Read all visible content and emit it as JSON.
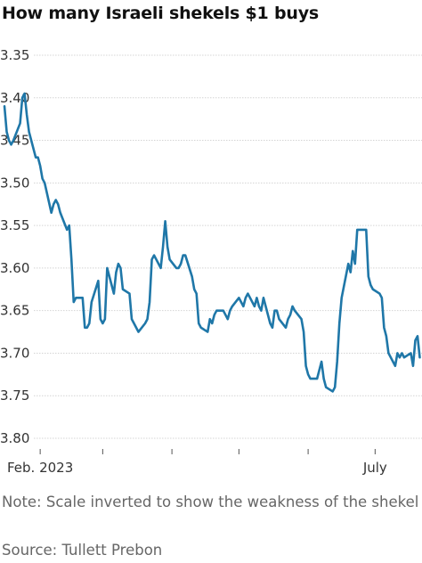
{
  "title": "How many Israeli shekels $1 buys",
  "note": "Note: Scale inverted to show the weakness of the shekel",
  "source": "Source: Tullett Prebon",
  "colors": {
    "line": "#1f77a8",
    "grid": "#d4d4d4",
    "tick": "#555555"
  },
  "chart_data": {
    "type": "line",
    "title": "How many Israeli shekels $1 buys",
    "xlabel": "",
    "ylabel": "",
    "y_inverted": true,
    "ylim": [
      3.35,
      3.8
    ],
    "yticks": [
      3.35,
      3.4,
      3.45,
      3.5,
      3.55,
      3.6,
      3.65,
      3.7,
      3.75,
      3.8
    ],
    "ytick_labels": [
      "3.35",
      "3.40",
      "3.45",
      "3.50",
      "3.55",
      "3.60",
      "3.65",
      "3.70",
      "3.75",
      "3.80"
    ],
    "xlim": [
      "2023-01-14",
      "2023-07-22"
    ],
    "xtick_dates": [
      "2023-02-01",
      "2023-03-01",
      "2023-04-01",
      "2023-05-01",
      "2023-06-01",
      "2023-07-01"
    ],
    "xtick_labels": [
      "Feb. 2023",
      "",
      "",
      "",
      "",
      "July"
    ],
    "grid": true,
    "series": [
      {
        "values": [
          [
            "2023-01-16",
            3.41
          ],
          [
            "2023-01-17",
            3.44
          ],
          [
            "2023-01-18",
            3.45
          ],
          [
            "2023-01-19",
            3.455
          ],
          [
            "2023-01-20",
            3.45
          ],
          [
            "2023-01-23",
            3.43
          ],
          [
            "2023-01-24",
            3.4
          ],
          [
            "2023-01-25",
            3.395
          ],
          [
            "2023-01-26",
            3.42
          ],
          [
            "2023-01-27",
            3.44
          ],
          [
            "2023-01-30",
            3.47
          ],
          [
            "2023-01-31",
            3.47
          ],
          [
            "2023-02-01",
            3.48
          ],
          [
            "2023-02-02",
            3.495
          ],
          [
            "2023-02-03",
            3.5
          ],
          [
            "2023-02-06",
            3.535
          ],
          [
            "2023-02-07",
            3.525
          ],
          [
            "2023-02-08",
            3.52
          ],
          [
            "2023-02-09",
            3.525
          ],
          [
            "2023-02-10",
            3.535
          ],
          [
            "2023-02-13",
            3.555
          ],
          [
            "2023-02-14",
            3.55
          ],
          [
            "2023-02-15",
            3.59
          ],
          [
            "2023-02-16",
            3.64
          ],
          [
            "2023-02-17",
            3.635
          ],
          [
            "2023-02-20",
            3.635
          ],
          [
            "2023-02-21",
            3.67
          ],
          [
            "2023-02-22",
            3.67
          ],
          [
            "2023-02-23",
            3.665
          ],
          [
            "2023-02-24",
            3.64
          ],
          [
            "2023-02-27",
            3.615
          ],
          [
            "2023-02-28",
            3.66
          ],
          [
            "2023-03-01",
            3.665
          ],
          [
            "2023-03-02",
            3.66
          ],
          [
            "2023-03-03",
            3.6
          ],
          [
            "2023-03-06",
            3.63
          ],
          [
            "2023-03-07",
            3.605
          ],
          [
            "2023-03-08",
            3.595
          ],
          [
            "2023-03-09",
            3.6
          ],
          [
            "2023-03-10",
            3.625
          ],
          [
            "2023-03-13",
            3.63
          ],
          [
            "2023-03-14",
            3.66
          ],
          [
            "2023-03-15",
            3.665
          ],
          [
            "2023-03-16",
            3.67
          ],
          [
            "2023-03-17",
            3.675
          ],
          [
            "2023-03-20",
            3.665
          ],
          [
            "2023-03-21",
            3.66
          ],
          [
            "2023-03-22",
            3.64
          ],
          [
            "2023-03-23",
            3.59
          ],
          [
            "2023-03-24",
            3.585
          ],
          [
            "2023-03-27",
            3.6
          ],
          [
            "2023-03-28",
            3.575
          ],
          [
            "2023-03-29",
            3.545
          ],
          [
            "2023-03-30",
            3.575
          ],
          [
            "2023-03-31",
            3.59
          ],
          [
            "2023-04-03",
            3.6
          ],
          [
            "2023-04-04",
            3.6
          ],
          [
            "2023-04-05",
            3.595
          ],
          [
            "2023-04-06",
            3.585
          ],
          [
            "2023-04-07",
            3.585
          ],
          [
            "2023-04-10",
            3.61
          ],
          [
            "2023-04-11",
            3.625
          ],
          [
            "2023-04-12",
            3.63
          ],
          [
            "2023-04-13",
            3.665
          ],
          [
            "2023-04-14",
            3.67
          ],
          [
            "2023-04-17",
            3.675
          ],
          [
            "2023-04-18",
            3.66
          ],
          [
            "2023-04-19",
            3.665
          ],
          [
            "2023-04-20",
            3.655
          ],
          [
            "2023-04-21",
            3.65
          ],
          [
            "2023-04-24",
            3.65
          ],
          [
            "2023-04-25",
            3.655
          ],
          [
            "2023-04-26",
            3.66
          ],
          [
            "2023-04-27",
            3.65
          ],
          [
            "2023-04-28",
            3.645
          ],
          [
            "2023-05-01",
            3.635
          ],
          [
            "2023-05-02",
            3.64
          ],
          [
            "2023-05-03",
            3.645
          ],
          [
            "2023-05-04",
            3.635
          ],
          [
            "2023-05-05",
            3.63
          ],
          [
            "2023-05-08",
            3.645
          ],
          [
            "2023-05-09",
            3.635
          ],
          [
            "2023-05-10",
            3.645
          ],
          [
            "2023-05-11",
            3.65
          ],
          [
            "2023-05-12",
            3.635
          ],
          [
            "2023-05-15",
            3.665
          ],
          [
            "2023-05-16",
            3.67
          ],
          [
            "2023-05-17",
            3.65
          ],
          [
            "2023-05-18",
            3.65
          ],
          [
            "2023-05-19",
            3.66
          ],
          [
            "2023-05-22",
            3.67
          ],
          [
            "2023-05-23",
            3.66
          ],
          [
            "2023-05-24",
            3.655
          ],
          [
            "2023-05-25",
            3.645
          ],
          [
            "2023-05-26",
            3.65
          ],
          [
            "2023-05-29",
            3.66
          ],
          [
            "2023-05-30",
            3.675
          ],
          [
            "2023-05-31",
            3.715
          ],
          [
            "2023-06-01",
            3.725
          ],
          [
            "2023-06-02",
            3.73
          ],
          [
            "2023-06-05",
            3.73
          ],
          [
            "2023-06-06",
            3.72
          ],
          [
            "2023-06-07",
            3.71
          ],
          [
            "2023-06-08",
            3.73
          ],
          [
            "2023-06-09",
            3.74
          ],
          [
            "2023-06-12",
            3.745
          ],
          [
            "2023-06-13",
            3.74
          ],
          [
            "2023-06-14",
            3.71
          ],
          [
            "2023-06-15",
            3.665
          ],
          [
            "2023-06-16",
            3.635
          ],
          [
            "2023-06-19",
            3.595
          ],
          [
            "2023-06-20",
            3.605
          ],
          [
            "2023-06-21",
            3.58
          ],
          [
            "2023-06-22",
            3.595
          ],
          [
            "2023-06-23",
            3.555
          ],
          [
            "2023-06-26",
            3.555
          ],
          [
            "2023-06-27",
            3.555
          ],
          [
            "2023-06-28",
            3.61
          ],
          [
            "2023-06-29",
            3.62
          ],
          [
            "2023-06-30",
            3.625
          ],
          [
            "2023-07-03",
            3.63
          ],
          [
            "2023-07-04",
            3.635
          ],
          [
            "2023-07-05",
            3.67
          ],
          [
            "2023-07-06",
            3.68
          ],
          [
            "2023-07-07",
            3.7
          ],
          [
            "2023-07-10",
            3.715
          ],
          [
            "2023-07-11",
            3.7
          ],
          [
            "2023-07-12",
            3.705
          ],
          [
            "2023-07-13",
            3.7
          ],
          [
            "2023-07-14",
            3.705
          ],
          [
            "2023-07-17",
            3.7
          ],
          [
            "2023-07-18",
            3.715
          ],
          [
            "2023-07-19",
            3.685
          ],
          [
            "2023-07-20",
            3.68
          ],
          [
            "2023-07-21",
            3.705
          ]
        ]
      }
    ]
  }
}
